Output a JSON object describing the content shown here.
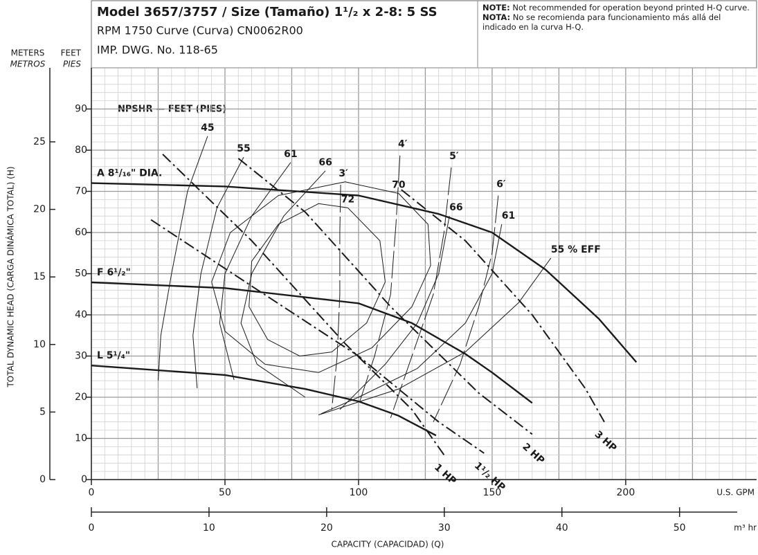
{
  "chart_data": {
    "type": "line",
    "title": "Model 3657/3757 / Size (Tamaño) 1¹/₂ x 2-8: 5 SS",
    "subtitle": "RPM 1750 Curve (Curva) CN0062R00",
    "drawing": "IMP. DWG. No. 118-65",
    "note_label": "NOTE:",
    "note": "Not recommended for operation beyond printed H-Q curve.",
    "nota_label": "NOTA:",
    "nota": "No se recomienda para funcionamiento más allá del indicado en la curva H-Q.",
    "y2_title": "METERS",
    "y2_title_es": "METROS",
    "y_title": "FEET",
    "y_title_es": "PIES",
    "y_axis_label": "TOTAL DYNAMIC HEAD (CARGA DINÁMICA TOTAL) (H)",
    "x_axis_label": "CAPACITY (CAPACIDAD) (Q)",
    "x_unit": "U.S. GPM",
    "x2_unit": "m³ hr",
    "npsh_title": "NPSHR — FEET (PIES)",
    "xlim": [
      0,
      249
    ],
    "xticks": [
      0,
      50,
      100,
      150,
      200
    ],
    "x2lim": [
      0,
      56.55
    ],
    "x2ticks": [
      0,
      10,
      20,
      30,
      40,
      50
    ],
    "ylim": [
      0,
      100
    ],
    "yticks": [
      0,
      10,
      20,
      30,
      40,
      50,
      60,
      70,
      80,
      90
    ],
    "y2lim": [
      0,
      30.48
    ],
    "y2ticks": [
      0,
      5,
      10,
      15,
      20,
      25
    ],
    "grid": {
      "x_step": 5,
      "y_step": 2,
      "x_major": 25,
      "y_major": 10
    },
    "color": "#1a1a1a",
    "head_curves": [
      {
        "name": "A 8¹/₁₆\" DIA.",
        "x": [
          0,
          50,
          100,
          130,
          150,
          170,
          190,
          204
        ],
        "y": [
          72,
          71.2,
          69,
          64.5,
          60,
          51,
          39,
          28.5
        ]
      },
      {
        "name": "F 6¹/₂\"",
        "x": [
          0,
          50,
          100,
          120,
          140,
          150,
          165
        ],
        "y": [
          47.9,
          46.5,
          42.8,
          38,
          30.5,
          26,
          18.6
        ]
      },
      {
        "name": "L 5¹/₄\"",
        "x": [
          0,
          50,
          80,
          100,
          115,
          129
        ],
        "y": [
          27.7,
          25.4,
          22,
          19,
          15.5,
          10.7
        ]
      }
    ],
    "hp_curves": [
      {
        "name": "1 HP",
        "x": [
          26.7,
          60,
          95,
          120,
          132
        ],
        "y": [
          79,
          58,
          33,
          17,
          6
        ]
      },
      {
        "name": "1¹/₂ HP",
        "x": [
          22.3,
          60,
          100,
          130,
          147
        ],
        "y": [
          63.1,
          47,
          30,
          14,
          6.4
        ]
      },
      {
        "name": "2 HP",
        "x": [
          55,
          80,
          112,
          145,
          165
        ],
        "y": [
          78,
          65,
          42,
          21,
          11
        ]
      },
      {
        "name": "3 HP",
        "x": [
          116,
          140,
          165,
          185,
          192
        ],
        "y": [
          70.4,
          58,
          40,
          22,
          14
        ]
      }
    ],
    "efficiency_curves": [
      {
        "name": "45",
        "x": [
          43.5,
          36,
          30,
          26,
          25
        ],
        "y": [
          83.4,
          70,
          50,
          35,
          24
        ]
      },
      {
        "name": "55",
        "x": [
          57,
          47,
          41,
          38,
          39.6
        ],
        "y": [
          78.3,
          66,
          50,
          35,
          22.2
        ]
      },
      {
        "name": "61",
        "x": [
          74.6,
          60,
          50,
          48,
          53.4
        ],
        "y": [
          77,
          64,
          50,
          38,
          24.2
        ]
      },
      {
        "name": "66",
        "x": [
          87.6,
          72,
          60,
          56,
          62,
          80
        ],
        "y": [
          75,
          64,
          50,
          38,
          28,
          20
        ]
      },
      {
        "name": "70",
        "x": [
          115,
          126,
          127,
          120,
          105,
          85,
          65,
          50,
          45,
          52,
          70,
          95,
          115
        ],
        "y": [
          69.5,
          62,
          52,
          42,
          32,
          26,
          28,
          36,
          48,
          60,
          69,
          72.3,
          69.5
        ]
      },
      {
        "name": "72",
        "x": [
          96,
          108,
          110,
          103,
          90,
          78,
          66,
          59,
          60,
          70,
          85,
          96
        ],
        "y": [
          66,
          58,
          48,
          38,
          31,
          30,
          34,
          42,
          53,
          62,
          67,
          66
        ]
      },
      {
        "name": "66",
        "x": [
          134,
          130,
          122,
          110,
          93
        ],
        "y": [
          64,
          50,
          38,
          28,
          17
        ]
      },
      {
        "name": "61",
        "x": [
          153.6,
          150,
          140,
          122,
          100,
          86
        ],
        "y": [
          62,
          50,
          38,
          27,
          20,
          16
        ]
      },
      {
        "name": "55 % EFF",
        "x": [
          172,
          160,
          140,
          115,
          85
        ],
        "y": [
          53.8,
          43,
          31,
          22,
          15.7
        ]
      }
    ],
    "npsh_curves": [
      {
        "name": "3′",
        "x": [
          93.3,
          93,
          93,
          92,
          90
        ],
        "y": [
          71.6,
          60,
          45,
          30,
          17
        ]
      },
      {
        "name": "4′",
        "x": [
          115.5,
          114,
          112,
          106,
          100
        ],
        "y": [
          78.7,
          62,
          45,
          30,
          18
        ]
      },
      {
        "name": "5′",
        "x": [
          134.7,
          132,
          128,
          120,
          112
        ],
        "y": [
          75.8,
          60,
          45,
          30,
          15
        ]
      },
      {
        "name": "6′",
        "x": [
          152.3,
          150,
          145,
          138,
          128
        ],
        "y": [
          69,
          55,
          42,
          28,
          14
        ]
      }
    ]
  }
}
